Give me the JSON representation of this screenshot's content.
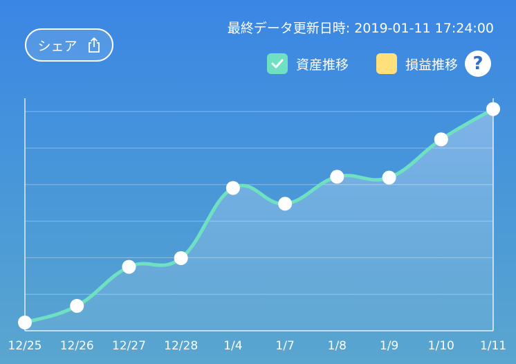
{
  "header": {
    "share_label": "シェア",
    "updated_label": "最終データ更新日時: 2019-01-11 17:24:00"
  },
  "legend": {
    "items": [
      {
        "label": "資産推移",
        "color": "#6fe0c1",
        "checked": true
      },
      {
        "label": "損益推移",
        "color": "#ffe07a",
        "checked": false
      }
    ],
    "help_symbol": "?"
  },
  "colors": {
    "line": "#6fe0c1",
    "point": "#ffffff",
    "grid": "rgba(255,255,255,0.35)"
  },
  "chart_data": {
    "type": "line",
    "categories": [
      "12/25",
      "12/26",
      "12/27",
      "12/28",
      "1/4",
      "1/7",
      "1/8",
      "1/9",
      "1/10",
      "1/11"
    ],
    "series": [
      {
        "values": [
          0.2,
          0.6,
          1.54,
          1.75,
          3.44,
          3.06,
          3.71,
          3.69,
          4.61,
          5.34
        ]
      }
    ],
    "ylim": [
      0,
      5.6
    ],
    "grid": true,
    "yaxis_labels": false,
    "legend_position": "top-right"
  }
}
